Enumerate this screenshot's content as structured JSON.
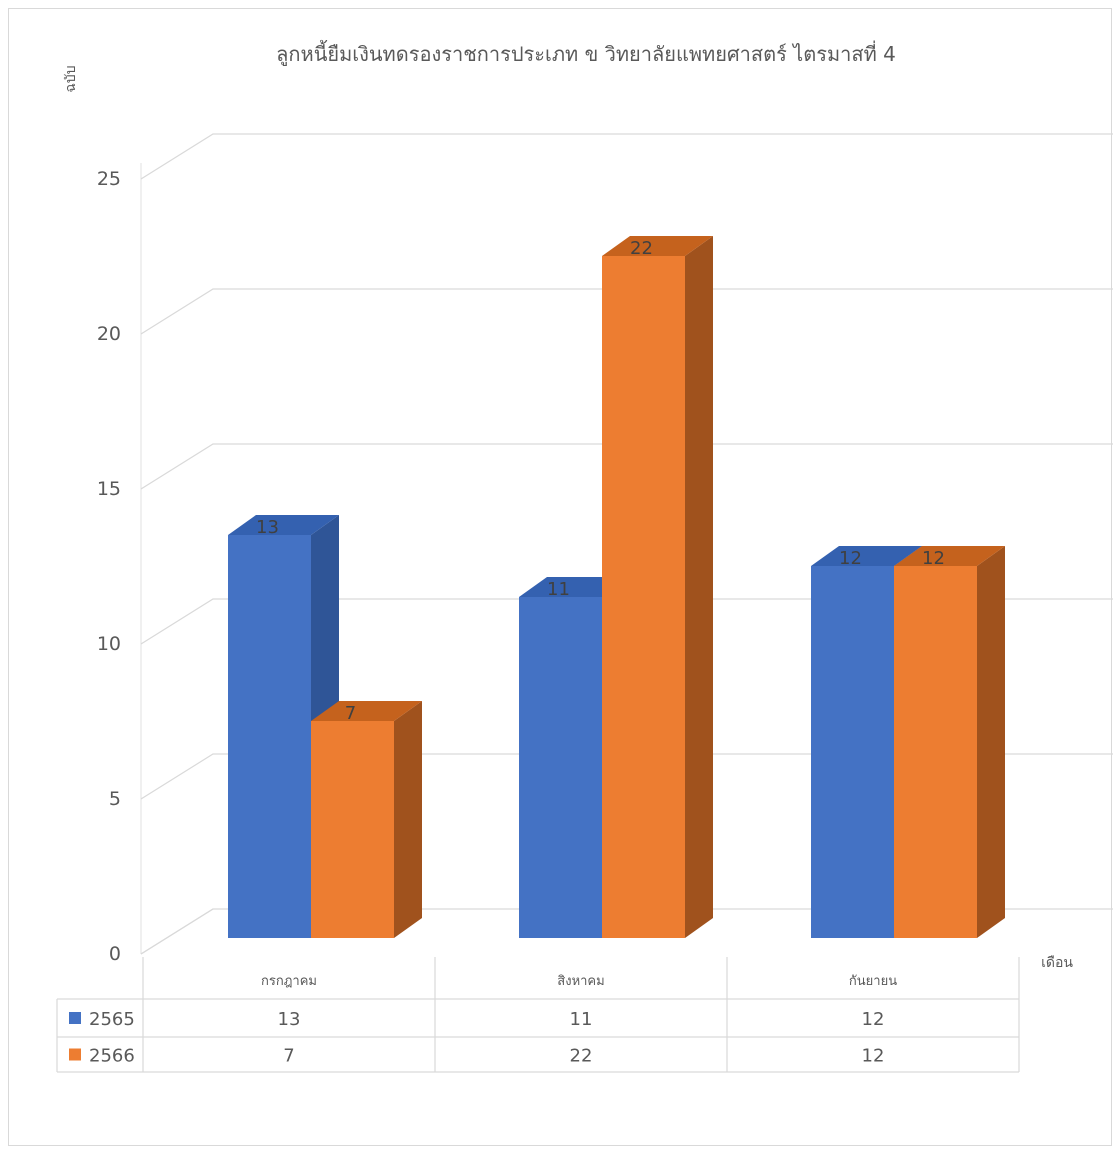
{
  "chart_data": {
    "type": "bar",
    "style": "3d-clustered-column",
    "title": "ลูกหนี้ยืมเงินทดรองราชการประเภท ข วิทยาลัยแพทยศาสตร์ ไตรมาสที่ 4",
    "ylabel": "ฉบับ",
    "xlabel": "เดือน",
    "categories": [
      "กรกฎาคม",
      "สิงหาคม",
      "กันยายน"
    ],
    "series": [
      {
        "name": "2565",
        "values": [
          13,
          11,
          12
        ],
        "color": "#4472c4",
        "side_color": "#2f5597",
        "top_color": "#3461b0"
      },
      {
        "name": "2566",
        "values": [
          7,
          22,
          12
        ],
        "color": "#ed7d31",
        "side_color": "#a0521d",
        "top_color": "#c5621d"
      }
    ],
    "ylim": [
      0,
      25
    ],
    "yticks": [
      0,
      5,
      10,
      15,
      20,
      25
    ],
    "grid": true,
    "data_labels": true,
    "legend": "data-table"
  }
}
